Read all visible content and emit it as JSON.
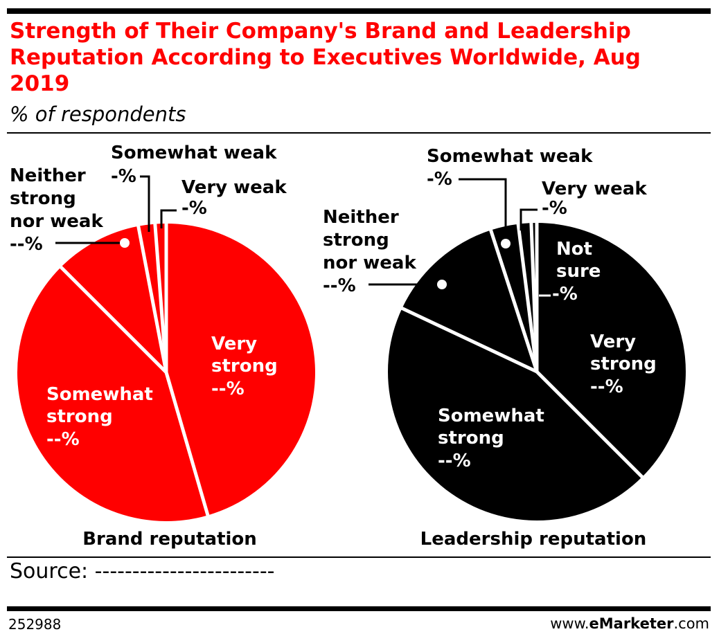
{
  "title": "Strength of Their Company's Brand and Leadership Reputation According to Executives Worldwide, Aug 2019",
  "subtitle": "% of respondents",
  "source": "Source: ------------------------",
  "footer": {
    "chart_id": "252988",
    "site_prefix": "www.",
    "site_brand_e": "e",
    "site_brand": "Marketer",
    "site_suffix": ".com"
  },
  "colors": {
    "title": "#ff0000",
    "brand_pie": "#ff0000",
    "leadership_pie": "#000000",
    "divider": "#ffffff"
  },
  "chart_data": [
    {
      "type": "pie",
      "title": "Brand reputation",
      "color": "#ff0000",
      "start_angle_deg": 0,
      "slices": [
        {
          "label": "Very strong",
          "value_label": "--%",
          "value": 45.5
        },
        {
          "label": "Somewhat strong",
          "value_label": "--%",
          "value": 42.0
        },
        {
          "label": "Neither strong nor weak",
          "value_label": "--%",
          "value": 9.5
        },
        {
          "label": "Somewhat weak",
          "value_label": "-%",
          "value": 1.8
        },
        {
          "label": "Very weak",
          "value_label": "-%",
          "value": 1.2
        }
      ]
    },
    {
      "type": "pie",
      "title": "Leadership reputation",
      "color": "#000000",
      "start_angle_deg": 0,
      "slices": [
        {
          "label": "Very strong",
          "value_label": "--%",
          "value": 37.5
        },
        {
          "label": "Somewhat strong",
          "value_label": "--%",
          "value": 44.5
        },
        {
          "label": "Neither strong nor weak",
          "value_label": "--%",
          "value": 13.0
        },
        {
          "label": "Somewhat weak",
          "value_label": "-%",
          "value": 3.0
        },
        {
          "label": "Very weak",
          "value_label": "-%",
          "value": 1.4
        },
        {
          "label": "Not sure",
          "value_label": "-%",
          "value": 0.6
        }
      ]
    }
  ]
}
